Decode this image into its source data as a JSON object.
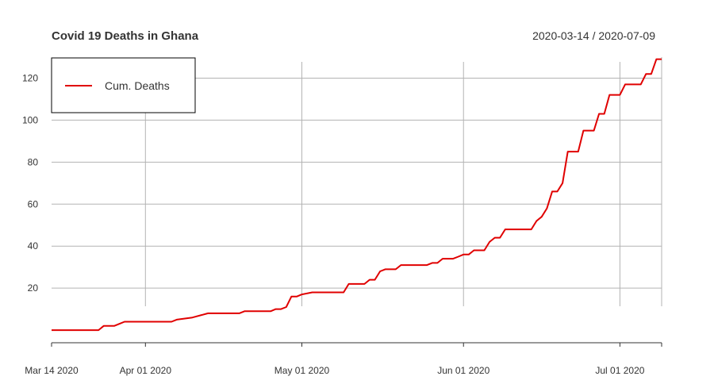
{
  "chart_data": {
    "type": "line",
    "title": "Covid 19 Deaths in Ghana",
    "date_range": "2020-03-14 / 2020-07-09",
    "xlim": [
      "2020-03-14",
      "2020-07-09"
    ],
    "ylim": [
      -6,
      130
    ],
    "x_ticks": [
      {
        "date": "2020-03-14",
        "label": "Mar 14 2020"
      },
      {
        "date": "2020-04-01",
        "label": "Apr 01 2020"
      },
      {
        "date": "2020-05-01",
        "label": "May 01 2020"
      },
      {
        "date": "2020-06-01",
        "label": "Jun 01 2020"
      },
      {
        "date": "2020-07-01",
        "label": "Jul 01 2020"
      }
    ],
    "y_ticks": [
      20,
      40,
      60,
      80,
      100,
      120
    ],
    "grid": true,
    "legend_position": "top-left",
    "series": [
      {
        "name": "Cum. Deaths",
        "color": "#e00000",
        "points": [
          [
            "2020-03-14",
            0
          ],
          [
            "2020-03-23",
            0
          ],
          [
            "2020-03-24",
            2
          ],
          [
            "2020-03-26",
            2
          ],
          [
            "2020-03-27",
            3
          ],
          [
            "2020-03-28",
            4
          ],
          [
            "2020-04-06",
            4
          ],
          [
            "2020-04-07",
            5
          ],
          [
            "2020-04-10",
            6
          ],
          [
            "2020-04-13",
            8
          ],
          [
            "2020-04-19",
            8
          ],
          [
            "2020-04-20",
            9
          ],
          [
            "2020-04-25",
            9
          ],
          [
            "2020-04-26",
            10
          ],
          [
            "2020-04-27",
            10
          ],
          [
            "2020-04-28",
            11
          ],
          [
            "2020-04-29",
            16
          ],
          [
            "2020-04-30",
            16
          ],
          [
            "2020-05-01",
            17
          ],
          [
            "2020-05-03",
            18
          ],
          [
            "2020-05-09",
            18
          ],
          [
            "2020-05-10",
            22
          ],
          [
            "2020-05-13",
            22
          ],
          [
            "2020-05-14",
            24
          ],
          [
            "2020-05-15",
            24
          ],
          [
            "2020-05-16",
            28
          ],
          [
            "2020-05-17",
            29
          ],
          [
            "2020-05-19",
            29
          ],
          [
            "2020-05-20",
            31
          ],
          [
            "2020-05-25",
            31
          ],
          [
            "2020-05-26",
            32
          ],
          [
            "2020-05-27",
            32
          ],
          [
            "2020-05-28",
            34
          ],
          [
            "2020-05-30",
            34
          ],
          [
            "2020-05-31",
            35
          ],
          [
            "2020-06-01",
            36
          ],
          [
            "2020-06-02",
            36
          ],
          [
            "2020-06-03",
            38
          ],
          [
            "2020-06-05",
            38
          ],
          [
            "2020-06-06",
            42
          ],
          [
            "2020-06-07",
            44
          ],
          [
            "2020-06-08",
            44
          ],
          [
            "2020-06-09",
            48
          ],
          [
            "2020-06-14",
            48
          ],
          [
            "2020-06-15",
            52
          ],
          [
            "2020-06-16",
            54
          ],
          [
            "2020-06-17",
            58
          ],
          [
            "2020-06-18",
            66
          ],
          [
            "2020-06-19",
            66
          ],
          [
            "2020-06-20",
            70
          ],
          [
            "2020-06-21",
            85
          ],
          [
            "2020-06-23",
            85
          ],
          [
            "2020-06-24",
            95
          ],
          [
            "2020-06-26",
            95
          ],
          [
            "2020-06-27",
            103
          ],
          [
            "2020-06-28",
            103
          ],
          [
            "2020-06-29",
            112
          ],
          [
            "2020-07-01",
            112
          ],
          [
            "2020-07-02",
            117
          ],
          [
            "2020-07-05",
            117
          ],
          [
            "2020-07-06",
            122
          ],
          [
            "2020-07-07",
            122
          ],
          [
            "2020-07-08",
            129
          ],
          [
            "2020-07-09",
            129
          ]
        ]
      }
    ]
  }
}
